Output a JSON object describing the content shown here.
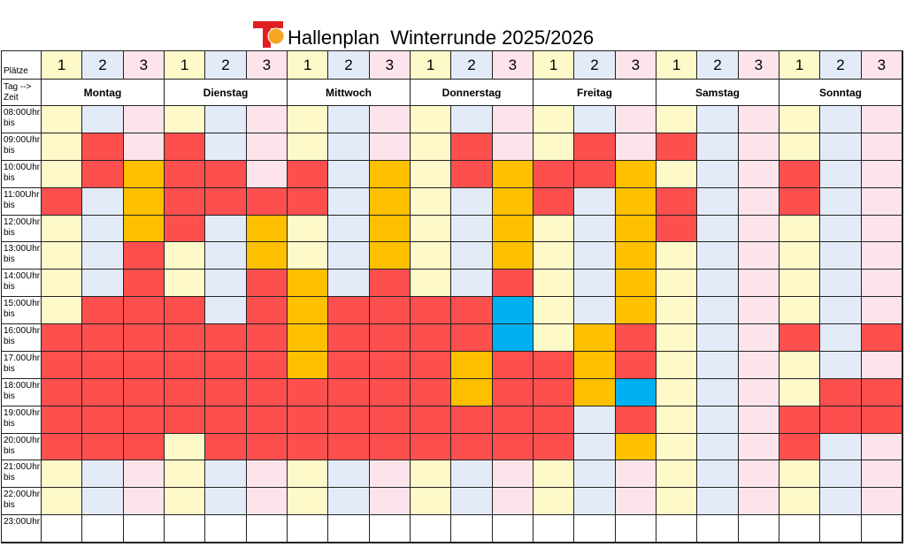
{
  "title": "Hallenplan  Winterrunde 2025/2026",
  "courts_label": "Plätze",
  "courts": [
    "1",
    "2",
    "3"
  ],
  "days_label": [
    "Tag -->",
    "Zeit"
  ],
  "days": [
    "Montag",
    "Dienstag",
    "Mittwoch",
    "Donnerstag",
    "Freitag",
    "Samstag",
    "Sonntag"
  ],
  "rows": [
    {
      "time": "08:00Uhr",
      "until": "bis",
      "cells": [
        "#fdf9c8",
        "#e4ebf8",
        "#fde4ea",
        "#fdf9c8",
        "#e4ebf8",
        "#fde4ea",
        "#fdf9c8",
        "#e4ebf8",
        "#fde4ea",
        "#fdf9c8",
        "#e4ebf8",
        "#fde4ea",
        "#fdf9c8",
        "#e4ebf8",
        "#fde4ea",
        "#fdf9c8",
        "#e4ebf8",
        "#fde4ea",
        "#fdf9c8",
        "#e4ebf8",
        "#fde4ea"
      ]
    },
    {
      "time": "09:00Uhr",
      "until": "bis",
      "cells": [
        "#fdf9c8",
        "#fe4f4f",
        "#fde4ea",
        "#fe4f4f",
        "#e4ebf8",
        "#fde4ea",
        "#fdf9c8",
        "#e4ebf8",
        "#fde4ea",
        "#fdf9c8",
        "#fe4f4f",
        "#fde4ea",
        "#fdf9c8",
        "#fe4f4f",
        "#fde4ea",
        "#fe4f4f",
        "#e4ebf8",
        "#fde4ea",
        "#fdf9c8",
        "#e4ebf8",
        "#fde4ea"
      ]
    },
    {
      "time": "10:00Uhr",
      "until": "bis",
      "cells": [
        "#fdf9c8",
        "#fe4f4f",
        "#ffc000",
        "#fe4f4f",
        "#fe4f4f",
        "#fde4ea",
        "#fe4f4f",
        "#e4ebf8",
        "#ffc000",
        "#fdf9c8",
        "#fe4f4f",
        "#ffc000",
        "#fe4f4f",
        "#fe4f4f",
        "#ffc000",
        "#fdf9c8",
        "#e4ebf8",
        "#fde4ea",
        "#fe4f4f",
        "#e4ebf8",
        "#fde4ea"
      ]
    },
    {
      "time": "11:00Uhr",
      "until": "bis",
      "cells": [
        "#fe4f4f",
        "#e4ebf8",
        "#ffc000",
        "#fe4f4f",
        "#fe4f4f",
        "#fe4f4f",
        "#fe4f4f",
        "#e4ebf8",
        "#ffc000",
        "#fdf9c8",
        "#e4ebf8",
        "#ffc000",
        "#fe4f4f",
        "#e4ebf8",
        "#ffc000",
        "#fe4f4f",
        "#e4ebf8",
        "#fde4ea",
        "#fe4f4f",
        "#e4ebf8",
        "#fde4ea"
      ]
    },
    {
      "time": "12:00Uhr",
      "until": "bis",
      "cells": [
        "#fdf9c8",
        "#e4ebf8",
        "#ffc000",
        "#fe4f4f",
        "#e4ebf8",
        "#ffc000",
        "#fdf9c8",
        "#e4ebf8",
        "#ffc000",
        "#fdf9c8",
        "#e4ebf8",
        "#ffc000",
        "#fdf9c8",
        "#e4ebf8",
        "#ffc000",
        "#fe4f4f",
        "#e4ebf8",
        "#fde4ea",
        "#fdf9c8",
        "#e4ebf8",
        "#fde4ea"
      ]
    },
    {
      "time": "13:00Uhr",
      "until": "bis",
      "cells": [
        "#fdf9c8",
        "#e4ebf8",
        "#fe4f4f",
        "#fdf9c8",
        "#e4ebf8",
        "#ffc000",
        "#fdf9c8",
        "#e4ebf8",
        "#ffc000",
        "#fdf9c8",
        "#e4ebf8",
        "#ffc000",
        "#fdf9c8",
        "#e4ebf8",
        "#ffc000",
        "#fdf9c8",
        "#e4ebf8",
        "#fde4ea",
        "#fdf9c8",
        "#e4ebf8",
        "#fde4ea"
      ]
    },
    {
      "time": "14:00Uhr",
      "until": "bis",
      "cells": [
        "#fdf9c8",
        "#e4ebf8",
        "#fe4f4f",
        "#fdf9c8",
        "#e4ebf8",
        "#fe4f4f",
        "#ffc000",
        "#e4ebf8",
        "#fe4f4f",
        "#fdf9c8",
        "#e4ebf8",
        "#fe4f4f",
        "#fdf9c8",
        "#e4ebf8",
        "#ffc000",
        "#fdf9c8",
        "#e4ebf8",
        "#fde4ea",
        "#fdf9c8",
        "#e4ebf8",
        "#fde4ea"
      ]
    },
    {
      "time": "15:00Uhr",
      "until": "bis",
      "cells": [
        "#fdf9c8",
        "#fe4f4f",
        "#fe4f4f",
        "#fe4f4f",
        "#e4ebf8",
        "#fe4f4f",
        "#ffc000",
        "#fe4f4f",
        "#fe4f4f",
        "#fe4f4f",
        "#fe4f4f",
        "#00b0f0",
        "#fdf9c8",
        "#e4ebf8",
        "#ffc000",
        "#fdf9c8",
        "#e4ebf8",
        "#fde4ea",
        "#fdf9c8",
        "#e4ebf8",
        "#fde4ea"
      ]
    },
    {
      "time": "16:00Uhr",
      "until": "bis",
      "cells": [
        "#fe4f4f",
        "#fe4f4f",
        "#fe4f4f",
        "#fe4f4f",
        "#fe4f4f",
        "#fe4f4f",
        "#ffc000",
        "#fe4f4f",
        "#fe4f4f",
        "#fe4f4f",
        "#fe4f4f",
        "#00b0f0",
        "#fdf9c8",
        "#ffc000",
        "#fe4f4f",
        "#fdf9c8",
        "#e4ebf8",
        "#fde4ea",
        "#fe4f4f",
        "#e4ebf8",
        "#fe4f4f"
      ]
    },
    {
      "time": "17.00Uhr",
      "until": "bis",
      "cells": [
        "#fe4f4f",
        "#fe4f4f",
        "#fe4f4f",
        "#fe4f4f",
        "#fe4f4f",
        "#fe4f4f",
        "#ffc000",
        "#fe4f4f",
        "#fe4f4f",
        "#fe4f4f",
        "#ffc000",
        "#fe4f4f",
        "#fe4f4f",
        "#ffc000",
        "#fe4f4f",
        "#fdf9c8",
        "#e4ebf8",
        "#fde4ea",
        "#fdf9c8",
        "#e4ebf8",
        "#fde4ea"
      ]
    },
    {
      "time": "18:00Uhr",
      "until": "bis",
      "cells": [
        "#fe4f4f",
        "#fe4f4f",
        "#fe4f4f",
        "#fe4f4f",
        "#fe4f4f",
        "#fe4f4f",
        "#fe4f4f",
        "#fe4f4f",
        "#fe4f4f",
        "#fe4f4f",
        "#ffc000",
        "#fe4f4f",
        "#fe4f4f",
        "#ffc000",
        "#00b0f0",
        "#fdf9c8",
        "#e4ebf8",
        "#fde4ea",
        "#fdf9c8",
        "#fe4f4f",
        "#fe4f4f"
      ]
    },
    {
      "time": "19:00Uhr",
      "until": "bis",
      "cells": [
        "#fe4f4f",
        "#fe4f4f",
        "#fe4f4f",
        "#fe4f4f",
        "#fe4f4f",
        "#fe4f4f",
        "#fe4f4f",
        "#fe4f4f",
        "#fe4f4f",
        "#fe4f4f",
        "#fe4f4f",
        "#fe4f4f",
        "#fe4f4f",
        "#e4ebf8",
        "#fe4f4f",
        "#fdf9c8",
        "#e4ebf8",
        "#fde4ea",
        "#fe4f4f",
        "#fe4f4f",
        "#fe4f4f"
      ]
    },
    {
      "time": "20:00Uhr",
      "until": "bis",
      "cells": [
        "#fe4f4f",
        "#fe4f4f",
        "#fe4f4f",
        "#fdf9c8",
        "#fe4f4f",
        "#fe4f4f",
        "#fe4f4f",
        "#fe4f4f",
        "#fe4f4f",
        "#fe4f4f",
        "#fe4f4f",
        "#fe4f4f",
        "#fe4f4f",
        "#e4ebf8",
        "#ffc000",
        "#fdf9c8",
        "#e4ebf8",
        "#fde4ea",
        "#fe4f4f",
        "#e4ebf8",
        "#fde4ea"
      ]
    },
    {
      "time": "21:00Uhr",
      "until": "bis",
      "cells": [
        "#fdf9c8",
        "#e4ebf8",
        "#fde4ea",
        "#fdf9c8",
        "#e4ebf8",
        "#fde4ea",
        "#fdf9c8",
        "#e4ebf8",
        "#fde4ea",
        "#fdf9c8",
        "#e4ebf8",
        "#fde4ea",
        "#fdf9c8",
        "#e4ebf8",
        "#fde4ea",
        "#fdf9c8",
        "#e4ebf8",
        "#fde4ea",
        "#fdf9c8",
        "#e4ebf8",
        "#fde4ea"
      ]
    },
    {
      "time": "22:00Uhr",
      "until": "bis",
      "cells": [
        "#fdf9c8",
        "#e4ebf8",
        "#fde4ea",
        "#fdf9c8",
        "#e4ebf8",
        "#fde4ea",
        "#fdf9c8",
        "#e4ebf8",
        "#fde4ea",
        "#fdf9c8",
        "#e4ebf8",
        "#fde4ea",
        "#fdf9c8",
        "#e4ebf8",
        "#fde4ea",
        "#fdf9c8",
        "#e4ebf8",
        "#fde4ea",
        "#fdf9c8",
        "#e4ebf8",
        "#fde4ea"
      ]
    },
    {
      "time": "23:00Uhr",
      "cells": [
        "#ffffff",
        "#ffffff",
        "#ffffff",
        "#ffffff",
        "#ffffff",
        "#ffffff",
        "#ffffff",
        "#ffffff",
        "#ffffff",
        "#ffffff",
        "#ffffff",
        "#ffffff",
        "#ffffff",
        "#ffffff",
        "#ffffff",
        "#ffffff",
        "#ffffff",
        "#ffffff",
        "#ffffff",
        "#ffffff",
        "#ffffff"
      ]
    }
  ]
}
